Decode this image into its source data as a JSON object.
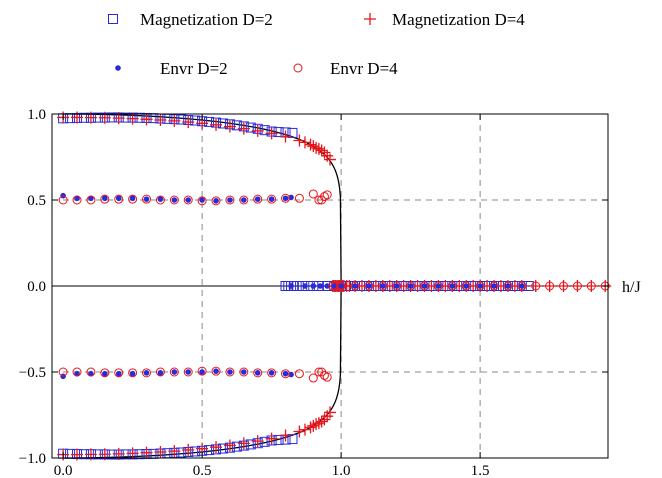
{
  "chart_data": {
    "type": "scatter",
    "title": "",
    "xlabel": "h/J",
    "ylabel": "",
    "xlim": [
      -0.04,
      1.96
    ],
    "ylim": [
      -1.0,
      1.0
    ],
    "xticks": [
      0.0,
      0.5,
      1.0,
      1.5
    ],
    "xtick_labels": [
      "0.0",
      "0.5",
      "1.0",
      "1.5"
    ],
    "yticks": [
      -1.0,
      -0.5,
      0.0,
      0.5,
      1.0
    ],
    "ytick_labels": [
      "−1.0",
      "−0.5",
      "0.0",
      "0.5",
      "1.0"
    ],
    "grid": true,
    "legend_position": "top",
    "colors": {
      "blue": "#2b2bd6",
      "red": "#e8151b",
      "line": "#000000",
      "grid": "#8a8a8a"
    },
    "series": [
      {
        "name": "Magnetization D=2",
        "marker": "square",
        "color": "#2b2bd6",
        "x": [
          0.0,
          0.025,
          0.05,
          0.075,
          0.1,
          0.125,
          0.15,
          0.175,
          0.2,
          0.225,
          0.25,
          0.275,
          0.3,
          0.325,
          0.35,
          0.375,
          0.4,
          0.425,
          0.45,
          0.475,
          0.5,
          0.525,
          0.55,
          0.575,
          0.6,
          0.625,
          0.65,
          0.675,
          0.7,
          0.725,
          0.75,
          0.775,
          0.8,
          0.825,
          0.8,
          0.82,
          0.84,
          0.86,
          0.88,
          0.9,
          0.92,
          0.95,
          0.975,
          1.0,
          1.025,
          1.05,
          1.075,
          1.1,
          1.125,
          1.15,
          1.175,
          1.2,
          1.225,
          1.25,
          1.275,
          1.3,
          1.325,
          1.35,
          1.375,
          1.4,
          1.425,
          1.45,
          1.475,
          1.5,
          1.525,
          1.55,
          1.575,
          1.6,
          1.625,
          1.65,
          1.675
        ],
        "y_abs": [
          0.975,
          0.976,
          0.977,
          0.978,
          0.978,
          0.979,
          0.979,
          0.98,
          0.98,
          0.979,
          0.979,
          0.978,
          0.977,
          0.976,
          0.974,
          0.972,
          0.97,
          0.968,
          0.965,
          0.962,
          0.958,
          0.954,
          0.95,
          0.945,
          0.94,
          0.934,
          0.928,
          0.921,
          0.914,
          0.906,
          0.898,
          0.895,
          0.893,
          0.89,
          null,
          null,
          null,
          null,
          null,
          null,
          null,
          null,
          null,
          null,
          null,
          null,
          null,
          null,
          null,
          null,
          null,
          null,
          null,
          null,
          null,
          null,
          null,
          null,
          null,
          null,
          null,
          null,
          null,
          null,
          null,
          null,
          null,
          null,
          null,
          null,
          null
        ],
        "zero_x": [
          0.8,
          0.81,
          0.82,
          0.83,
          0.84,
          0.86,
          0.88,
          0.9,
          0.92,
          0.95,
          0.975,
          1.0,
          1.025,
          1.05,
          1.075,
          1.1,
          1.125,
          1.15,
          1.175,
          1.2,
          1.225,
          1.25,
          1.275,
          1.3,
          1.325,
          1.35,
          1.375,
          1.4,
          1.425,
          1.45,
          1.475,
          1.5,
          1.525,
          1.55,
          1.575,
          1.6,
          1.625,
          1.65,
          1.675
        ]
      },
      {
        "name": "Magnetization D=4",
        "marker": "plus",
        "color": "#e8151b",
        "x": [
          0.0,
          0.05,
          0.1,
          0.15,
          0.2,
          0.25,
          0.3,
          0.35,
          0.4,
          0.45,
          0.5,
          0.55,
          0.6,
          0.65,
          0.7,
          0.75,
          0.8,
          0.85,
          0.87,
          0.89,
          0.9,
          0.91,
          0.92,
          0.93,
          0.94,
          0.95,
          0.96
        ],
        "y_abs": [
          0.98,
          0.98,
          0.979,
          0.978,
          0.976,
          0.973,
          0.969,
          0.965,
          0.96,
          0.953,
          0.946,
          0.937,
          0.927,
          0.915,
          0.902,
          0.887,
          0.869,
          0.846,
          0.835,
          0.822,
          0.813,
          0.803,
          0.797,
          0.788,
          0.776,
          0.757,
          0.735
        ],
        "zero_x": [
          0.97,
          0.975,
          0.98,
          0.985,
          0.99,
          0.995,
          1.0,
          1.005,
          1.01,
          1.02,
          1.03,
          1.05,
          1.075,
          1.1,
          1.125,
          1.15,
          1.175,
          1.2,
          1.225,
          1.25,
          1.275,
          1.3,
          1.325,
          1.35,
          1.375,
          1.4,
          1.425,
          1.45,
          1.475,
          1.5,
          1.525,
          1.55,
          1.575,
          1.6,
          1.625,
          1.65,
          1.7,
          1.75,
          1.8,
          1.85,
          1.9,
          1.95
        ]
      },
      {
        "name": "Envr D=2",
        "marker": "dot",
        "color": "#2b2bd6",
        "x": [
          0.0,
          0.05,
          0.1,
          0.15,
          0.2,
          0.25,
          0.3,
          0.35,
          0.4,
          0.45,
          0.5,
          0.55,
          0.6,
          0.65,
          0.7,
          0.75,
          0.8,
          0.82
        ],
        "y_abs": [
          0.525,
          0.51,
          0.51,
          0.51,
          0.51,
          0.51,
          0.505,
          0.505,
          0.5,
          0.5,
          0.5,
          0.495,
          0.5,
          0.5,
          0.505,
          0.505,
          0.51,
          0.515
        ],
        "zero_x": [
          0.82,
          0.87,
          0.9,
          0.925,
          0.95,
          0.975,
          1.0,
          1.05,
          1.1,
          1.15,
          1.2,
          1.25,
          1.3,
          1.35,
          1.4,
          1.45,
          1.5,
          1.55,
          1.6,
          1.65
        ]
      },
      {
        "name": "Envr D=4",
        "marker": "circle",
        "color": "#e8151b",
        "x": [
          0.0,
          0.05,
          0.1,
          0.15,
          0.2,
          0.25,
          0.3,
          0.35,
          0.4,
          0.45,
          0.5,
          0.55,
          0.6,
          0.65,
          0.7,
          0.75,
          0.8,
          0.85,
          0.9,
          0.92,
          0.93,
          0.94,
          0.95
        ],
        "y_abs": [
          0.5,
          0.5,
          0.5,
          0.505,
          0.505,
          0.505,
          0.505,
          0.5,
          0.5,
          0.5,
          0.495,
          0.495,
          0.5,
          0.5,
          0.505,
          0.505,
          0.51,
          0.51,
          0.535,
          0.5,
          0.5,
          0.52,
          0.53
        ],
        "zero_x": [
          0.97,
          1.0,
          1.05,
          1.1,
          1.15,
          1.2,
          1.25,
          1.3,
          1.35,
          1.4,
          1.45,
          1.5,
          1.55,
          1.6,
          1.65,
          1.7,
          1.75,
          1.8,
          1.85,
          1.9,
          1.95
        ]
      }
    ],
    "theory_curve": {
      "h_c": 1.0,
      "exponent": 0.125
    }
  }
}
